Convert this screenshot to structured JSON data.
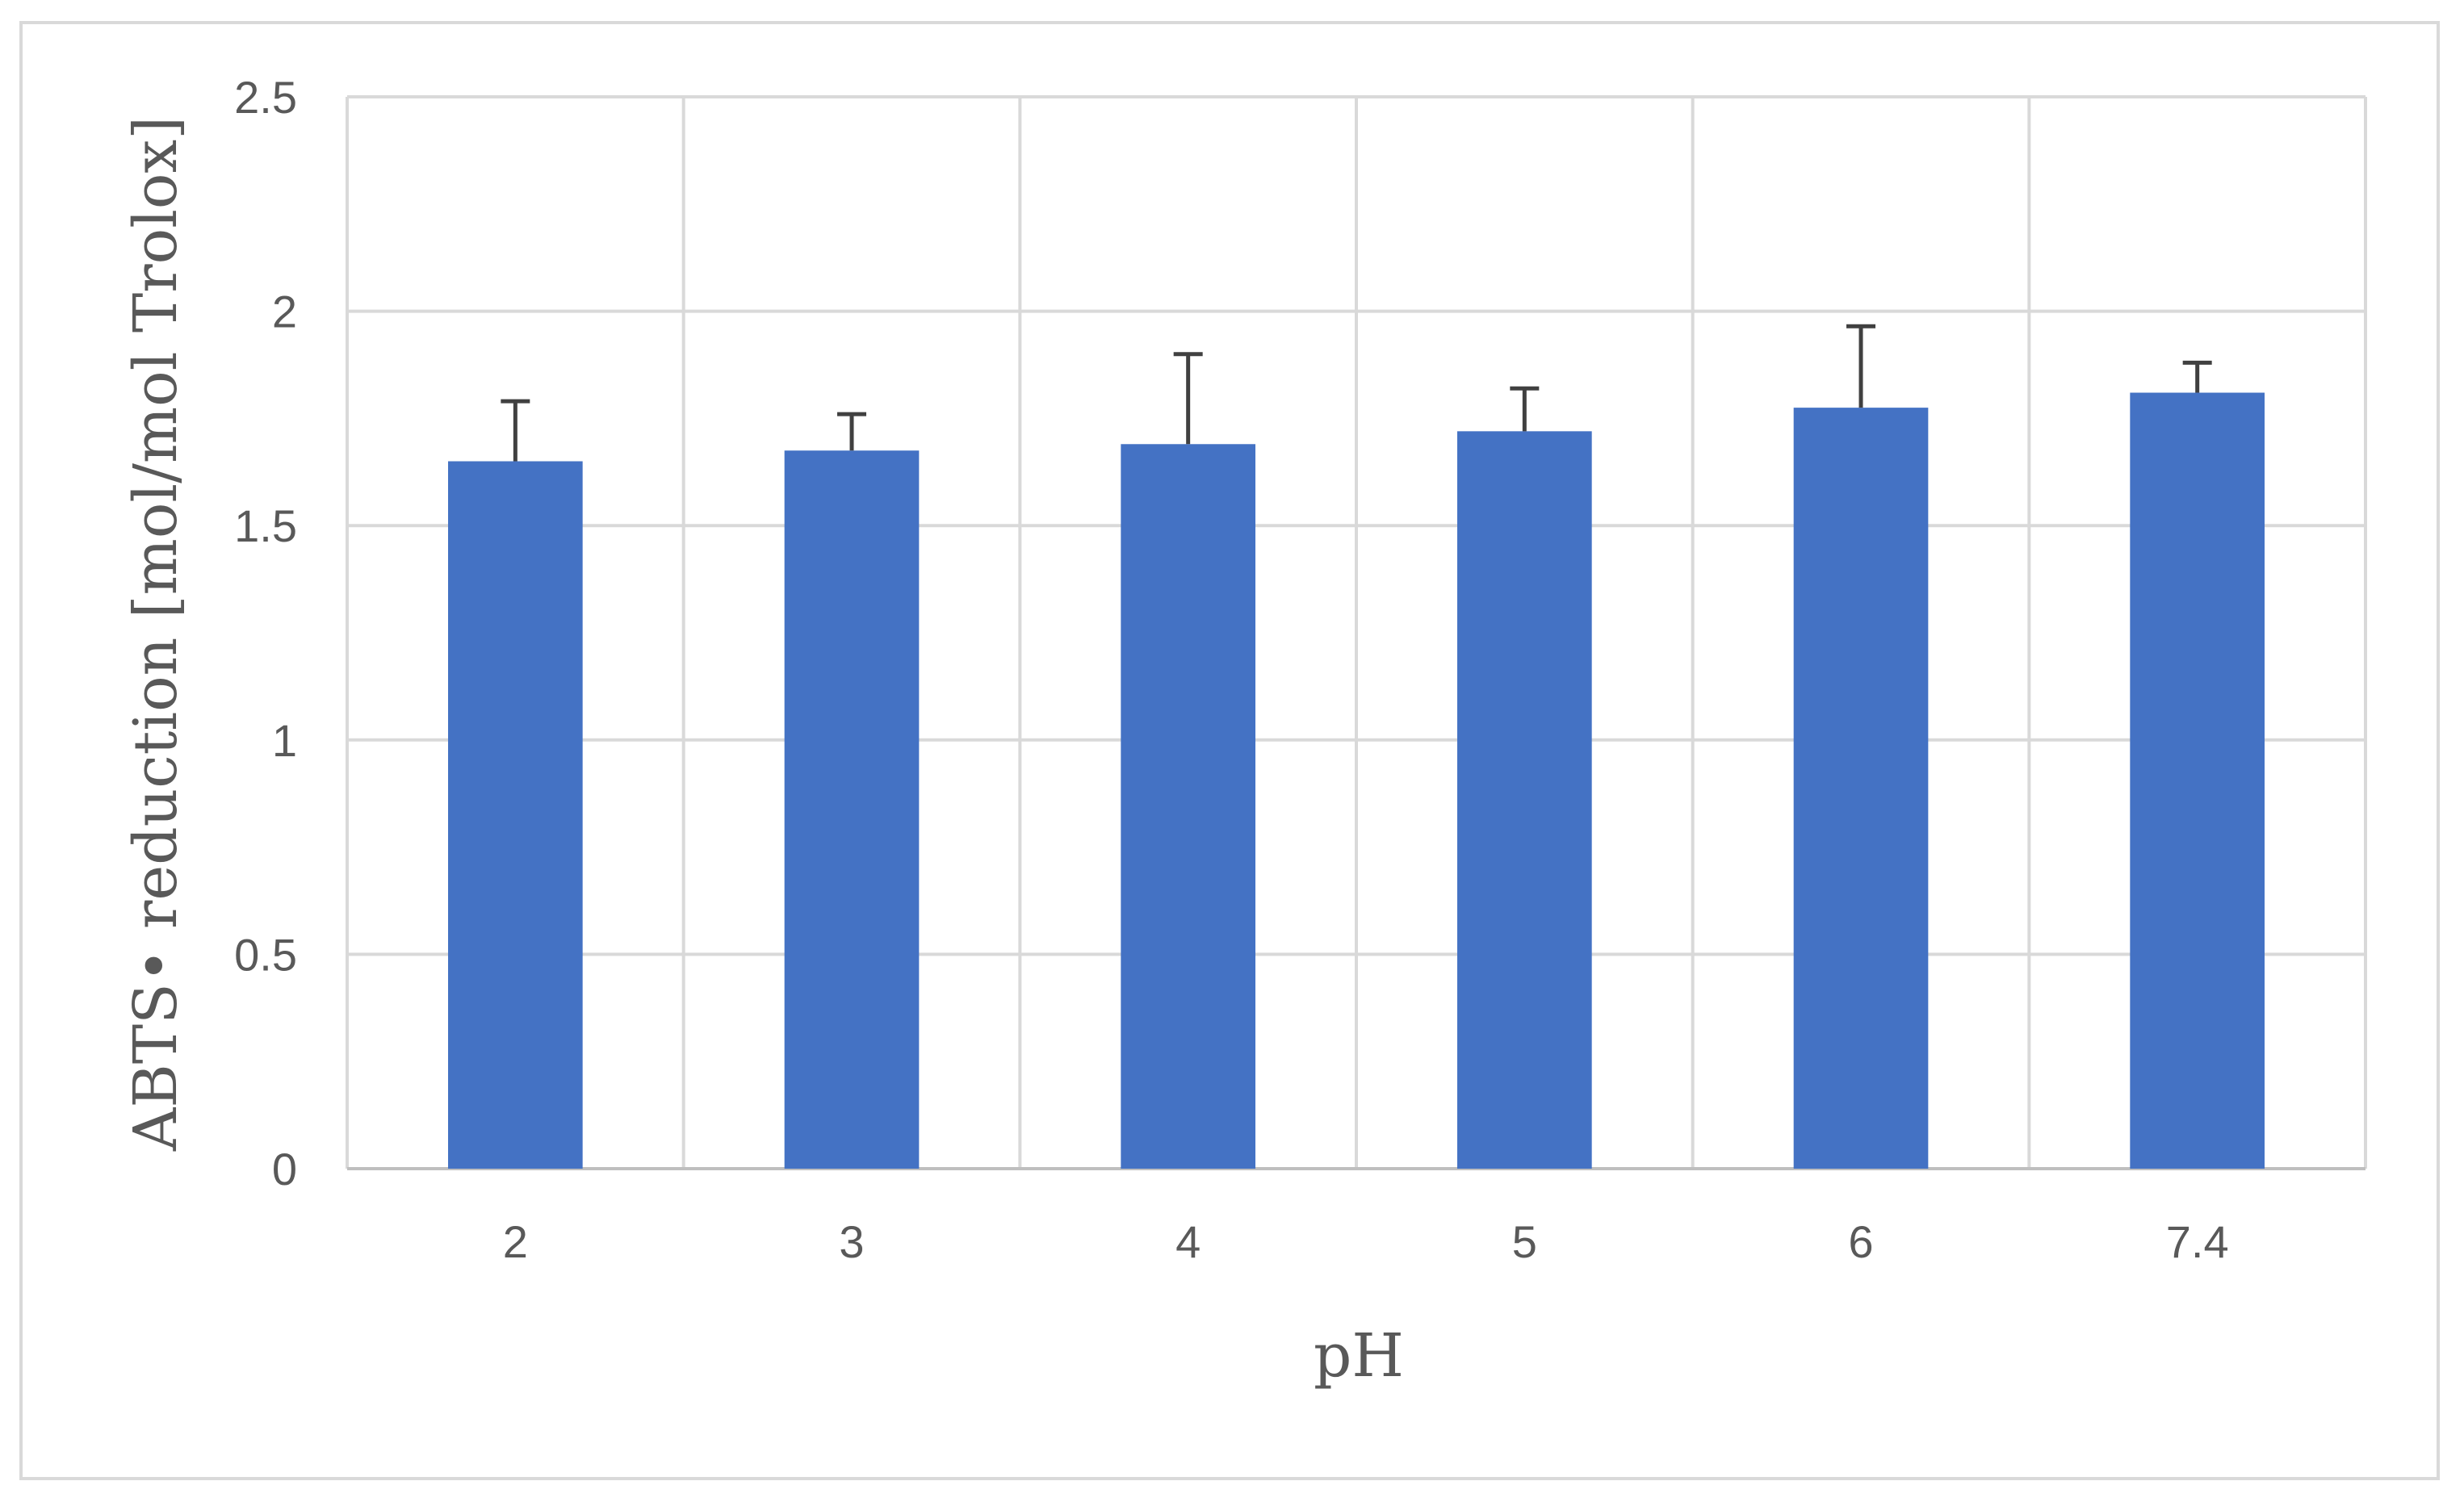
{
  "chart_data": {
    "type": "bar",
    "title": "",
    "xlabel": "pH",
    "ylabel": "ABTS• reduction [mol/mol Trolox]",
    "categories": [
      "2",
      "3",
      "4",
      "5",
      "6",
      "7.4"
    ],
    "values": [
      1.65,
      1.675,
      1.69,
      1.72,
      1.775,
      1.81
    ],
    "error_plus": [
      0.14,
      0.085,
      0.21,
      0.1,
      0.19,
      0.07
    ],
    "ylim": [
      0,
      2.5
    ],
    "yticks": [
      "0",
      "0.5",
      "1",
      "1.5",
      "2",
      "2.5"
    ],
    "grid": true,
    "legend": "none",
    "bar_color": "#4472c4",
    "error_bar_color": "#404040",
    "grid_color": "#d9d9d9"
  }
}
